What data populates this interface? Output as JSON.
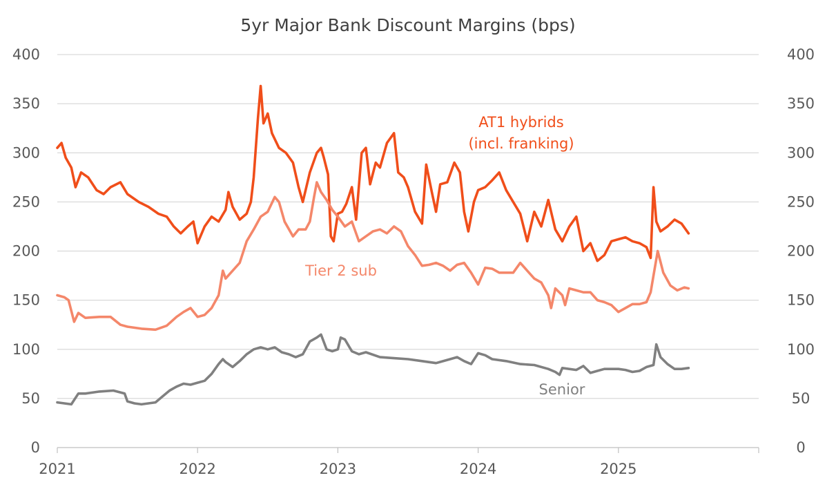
{
  "chart_data": {
    "type": "line",
    "title": "5yr Major Bank Discount Margins (bps)",
    "xlabel": "",
    "ylabel": "",
    "x_range": [
      2021.0,
      2026.0
    ],
    "ylim": [
      0,
      400
    ],
    "y_ticks": [
      "0",
      "50",
      "100",
      "150",
      "200",
      "250",
      "300",
      "350",
      "400"
    ],
    "x_ticks": [
      "2021",
      "2022",
      "2023",
      "2024",
      "2025"
    ],
    "secondary_y_axis": true,
    "grid": "horizontal",
    "legend": "inline labels",
    "series": [
      {
        "name": "AT1 hybrids (incl. franking)",
        "label_lines": [
          "AT1 hybrids",
          "(incl. franking)"
        ],
        "color": "#f04e1a",
        "x": [
          2021.0,
          2021.03,
          2021.06,
          2021.1,
          2021.13,
          2021.17,
          2021.22,
          2021.28,
          2021.33,
          2021.38,
          2021.45,
          2021.5,
          2021.58,
          2021.65,
          2021.72,
          2021.78,
          2021.83,
          2021.88,
          2021.93,
          2021.97,
          2022.0,
          2022.05,
          2022.1,
          2022.15,
          2022.2,
          2022.22,
          2022.25,
          2022.3,
          2022.35,
          2022.38,
          2022.4,
          2022.43,
          2022.45,
          2022.47,
          2022.5,
          2022.53,
          2022.58,
          2022.63,
          2022.68,
          2022.72,
          2022.75,
          2022.8,
          2022.85,
          2022.88,
          2022.9,
          2022.93,
          2022.95,
          2022.97,
          2023.0,
          2023.03,
          2023.06,
          2023.1,
          2023.13,
          2023.17,
          2023.2,
          2023.23,
          2023.27,
          2023.3,
          2023.35,
          2023.4,
          2023.43,
          2023.47,
          2023.5,
          2023.55,
          2023.6,
          2023.63,
          2023.67,
          2023.7,
          2023.73,
          2023.78,
          2023.83,
          2023.87,
          2023.9,
          2023.93,
          2023.97,
          2024.0,
          2024.05,
          2024.1,
          2024.15,
          2024.2,
          2024.25,
          2024.3,
          2024.35,
          2024.4,
          2024.45,
          2024.5,
          2024.55,
          2024.6,
          2024.65,
          2024.7,
          2024.75,
          2024.8,
          2024.85,
          2024.9,
          2024.95,
          2025.0,
          2025.05,
          2025.1,
          2025.15,
          2025.2,
          2025.23,
          2025.25,
          2025.27,
          2025.3,
          2025.35,
          2025.4,
          2025.45,
          2025.5
        ],
        "values": [
          305,
          310,
          295,
          285,
          265,
          280,
          275,
          262,
          258,
          265,
          270,
          258,
          250,
          245,
          238,
          235,
          225,
          218,
          225,
          230,
          208,
          225,
          235,
          230,
          242,
          260,
          245,
          232,
          238,
          250,
          275,
          335,
          368,
          330,
          340,
          320,
          305,
          300,
          290,
          265,
          250,
          280,
          300,
          305,
          295,
          278,
          215,
          210,
          238,
          240,
          248,
          265,
          232,
          300,
          305,
          268,
          290,
          285,
          310,
          320,
          280,
          275,
          265,
          240,
          228,
          288,
          260,
          240,
          268,
          270,
          290,
          280,
          240,
          220,
          250,
          262,
          265,
          272,
          280,
          262,
          250,
          238,
          210,
          240,
          225,
          252,
          222,
          210,
          225,
          235,
          200,
          208,
          190,
          196,
          210,
          212,
          214,
          210,
          208,
          204,
          193,
          265,
          230,
          220,
          225,
          232,
          228,
          218
        ]
      },
      {
        "name": "Tier 2 sub",
        "label_lines": [
          "Tier 2 sub"
        ],
        "color": "#f4876a",
        "x": [
          2021.0,
          2021.05,
          2021.08,
          2021.12,
          2021.15,
          2021.2,
          2021.3,
          2021.38,
          2021.45,
          2021.5,
          2021.6,
          2021.7,
          2021.78,
          2021.85,
          2021.9,
          2021.95,
          2022.0,
          2022.05,
          2022.1,
          2022.15,
          2022.18,
          2022.2,
          2022.25,
          2022.3,
          2022.35,
          2022.4,
          2022.45,
          2022.5,
          2022.55,
          2022.58,
          2022.62,
          2022.68,
          2022.72,
          2022.77,
          2022.8,
          2022.83,
          2022.85,
          2022.88,
          2022.92,
          2022.96,
          2023.0,
          2023.05,
          2023.1,
          2023.15,
          2023.2,
          2023.25,
          2023.3,
          2023.35,
          2023.4,
          2023.45,
          2023.5,
          2023.55,
          2023.6,
          2023.65,
          2023.7,
          2023.75,
          2023.8,
          2023.85,
          2023.9,
          2023.95,
          2024.0,
          2024.05,
          2024.1,
          2024.15,
          2024.2,
          2024.25,
          2024.3,
          2024.35,
          2024.4,
          2024.45,
          2024.5,
          2024.52,
          2024.55,
          2024.6,
          2024.62,
          2024.65,
          2024.7,
          2024.75,
          2024.8,
          2024.85,
          2024.9,
          2024.95,
          2025.0,
          2025.05,
          2025.1,
          2025.15,
          2025.2,
          2025.23,
          2025.25,
          2025.28,
          2025.32,
          2025.37,
          2025.42,
          2025.47,
          2025.5
        ],
        "values": [
          155,
          153,
          150,
          128,
          137,
          132,
          133,
          133,
          125,
          123,
          121,
          120,
          124,
          133,
          138,
          142,
          133,
          135,
          142,
          155,
          180,
          172,
          180,
          188,
          210,
          222,
          235,
          240,
          255,
          250,
          230,
          215,
          222,
          222,
          230,
          255,
          270,
          260,
          252,
          242,
          235,
          225,
          230,
          210,
          215,
          220,
          222,
          218,
          225,
          220,
          205,
          196,
          185,
          186,
          188,
          185,
          180,
          186,
          188,
          178,
          166,
          183,
          182,
          178,
          178,
          178,
          188,
          180,
          172,
          168,
          155,
          142,
          162,
          155,
          145,
          162,
          160,
          158,
          158,
          150,
          148,
          145,
          138,
          142,
          146,
          146,
          148,
          158,
          175,
          200,
          178,
          165,
          160,
          163,
          162
        ]
      },
      {
        "name": "Senior",
        "label_lines": [
          "Senior"
        ],
        "color": "#808080",
        "x": [
          2021.0,
          2021.05,
          2021.1,
          2021.15,
          2021.2,
          2021.3,
          2021.4,
          2021.48,
          2021.5,
          2021.55,
          2021.6,
          2021.7,
          2021.75,
          2021.8,
          2021.85,
          2021.9,
          2021.95,
          2022.0,
          2022.05,
          2022.1,
          2022.15,
          2022.18,
          2022.2,
          2022.25,
          2022.3,
          2022.35,
          2022.4,
          2022.45,
          2022.5,
          2022.55,
          2022.6,
          2022.65,
          2022.7,
          2022.75,
          2022.8,
          2022.85,
          2022.88,
          2022.92,
          2022.96,
          2023.0,
          2023.02,
          2023.05,
          2023.1,
          2023.15,
          2023.2,
          2023.3,
          2023.4,
          2023.5,
          2023.6,
          2023.7,
          2023.8,
          2023.85,
          2023.9,
          2023.95,
          2024.0,
          2024.05,
          2024.1,
          2024.2,
          2024.3,
          2024.4,
          2024.5,
          2024.55,
          2024.58,
          2024.6,
          2024.7,
          2024.75,
          2024.8,
          2024.85,
          2024.9,
          2024.95,
          2025.0,
          2025.05,
          2025.1,
          2025.15,
          2025.2,
          2025.25,
          2025.27,
          2025.3,
          2025.35,
          2025.4,
          2025.45,
          2025.5
        ],
        "values": [
          46,
          45,
          44,
          55,
          55,
          57,
          58,
          55,
          47,
          45,
          44,
          46,
          52,
          58,
          62,
          65,
          64,
          66,
          68,
          75,
          85,
          90,
          87,
          82,
          88,
          95,
          100,
          102,
          100,
          102,
          97,
          95,
          92,
          95,
          108,
          112,
          115,
          100,
          98,
          100,
          112,
          110,
          98,
          95,
          97,
          92,
          91,
          90,
          88,
          86,
          90,
          92,
          88,
          85,
          96,
          94,
          90,
          88,
          85,
          84,
          80,
          77,
          74,
          81,
          79,
          83,
          76,
          78,
          80,
          80,
          80,
          79,
          77,
          78,
          82,
          84,
          105,
          92,
          85,
          80,
          80,
          81
        ]
      }
    ]
  }
}
